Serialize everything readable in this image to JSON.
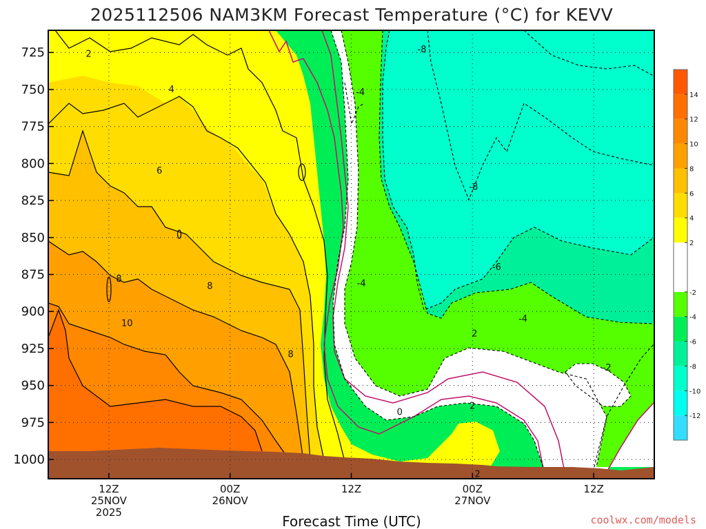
{
  "chart_data": {
    "type": "heatmap",
    "title": "2025112506 NAM3KM Forecast Temperature (°C) for KEVV",
    "xlabel": "Forecast Time (UTC)",
    "ylabel": "",
    "x_unit": "forecast hour",
    "xlim": [
      0,
      60
    ],
    "y_unit": "hPa",
    "ylim": [
      1013,
      710
    ],
    "y_ticks": [
      725,
      750,
      775,
      800,
      825,
      850,
      875,
      900,
      925,
      950,
      975,
      1000
    ],
    "x_ticks": [
      {
        "hour": 6,
        "lines": [
          "12Z",
          "25NOV",
          "2025"
        ]
      },
      {
        "hour": 18,
        "lines": [
          "00Z",
          "26NOV"
        ]
      },
      {
        "hour": 30,
        "lines": [
          "12Z"
        ]
      },
      {
        "hour": 42,
        "lines": [
          "00Z",
          "27NOV"
        ]
      },
      {
        "hour": 54,
        "lines": [
          "12Z"
        ]
      }
    ],
    "colorbar": {
      "labels": [
        14,
        12,
        10,
        8,
        6,
        4,
        2,
        -2,
        -4,
        -6,
        -8,
        -10,
        -12
      ],
      "bands": [
        {
          "from": -14,
          "to": -12,
          "color": "#33ddff"
        },
        {
          "from": -12,
          "to": -10,
          "color": "#00ffee"
        },
        {
          "from": -10,
          "to": -8,
          "color": "#00ffcc"
        },
        {
          "from": -8,
          "to": -6,
          "color": "#00f099"
        },
        {
          "from": -6,
          "to": -4,
          "color": "#00ee55"
        },
        {
          "from": -4,
          "to": -2,
          "color": "#55ff00"
        },
        {
          "from": -2,
          "to": 2,
          "color": "#ffffff"
        },
        {
          "from": 2,
          "to": 4,
          "color": "#ffff00"
        },
        {
          "from": 4,
          "to": 6,
          "color": "#ffdd00"
        },
        {
          "from": 6,
          "to": 8,
          "color": "#ffc000"
        },
        {
          "from": 8,
          "to": 10,
          "color": "#ffa000"
        },
        {
          "from": 10,
          "to": 12,
          "color": "#ff8800"
        },
        {
          "from": 12,
          "to": 14,
          "color": "#ff7000"
        },
        {
          "from": 14,
          "to": 16,
          "color": "#ff5800"
        }
      ]
    },
    "ground_color": "#a0522d",
    "freezing_line_color": "#c0106a",
    "contour_labels": [
      {
        "text": "2",
        "t": 4.0,
        "p": 726
      },
      {
        "text": "4",
        "t": 12.2,
        "p": 750
      },
      {
        "text": "6",
        "t": 11.0,
        "p": 805
      },
      {
        "text": "8",
        "t": 7.0,
        "p": 878
      },
      {
        "text": "8",
        "t": 16.0,
        "p": 883
      },
      {
        "text": "10",
        "t": 7.8,
        "p": 908
      },
      {
        "text": "8",
        "t": 24.0,
        "p": 929
      },
      {
        "text": "2",
        "t": 42.5,
        "p": 1010
      },
      {
        "text": "0",
        "t": 34.8,
        "p": 968
      },
      {
        "text": "2",
        "t": 42.0,
        "p": 964
      },
      {
        "text": "2",
        "t": 42.2,
        "p": 915
      },
      {
        "text": "-4",
        "t": 30.9,
        "p": 752
      },
      {
        "text": "-4",
        "t": 31.0,
        "p": 881
      },
      {
        "text": "-4",
        "t": 47.0,
        "p": 905
      },
      {
        "text": "-6",
        "t": 44.4,
        "p": 870
      },
      {
        "text": "-8",
        "t": 37.0,
        "p": 723
      },
      {
        "text": "-8",
        "t": 42.1,
        "p": 816
      },
      {
        "text": "-2",
        "t": 55.3,
        "p": 938
      }
    ],
    "grid": true
  },
  "credit": "coolwx.com/models"
}
